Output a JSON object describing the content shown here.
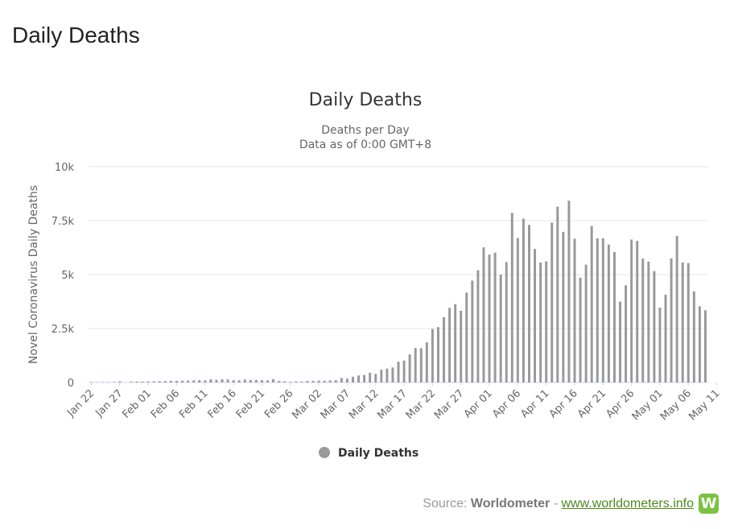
{
  "page": {
    "title": "Daily Deaths"
  },
  "chart_data": {
    "type": "bar",
    "title": "Daily Deaths",
    "subtitle_line1": "Deaths per Day",
    "subtitle_line2": "Data as of 0:00 GMT+8",
    "ylabel": "Novel Coronavirus Daily Deaths",
    "xlabel": "",
    "ylim": [
      0,
      10000
    ],
    "yticks": [
      0,
      2500,
      5000,
      7500,
      10000
    ],
    "ytick_labels": [
      "0",
      "2.5k",
      "5k",
      "7.5k",
      "10k"
    ],
    "xtick_labels": [
      "Jan 22",
      "Jan 27",
      "Feb 01",
      "Feb 06",
      "Feb 11",
      "Feb 16",
      "Feb 21",
      "Feb 26",
      "Mar 02",
      "Mar 07",
      "Mar 12",
      "Mar 17",
      "Mar 22",
      "Mar 27",
      "Apr 01",
      "Apr 06",
      "Apr 11",
      "Apr 16",
      "Apr 21",
      "Apr 26",
      "May 01",
      "May 06",
      "May 11"
    ],
    "grid": true,
    "legend_position": "bottom-center",
    "series": [
      {
        "name": "Daily Deaths",
        "color": "#999999",
        "values": [
          17,
          8,
          16,
          14,
          26,
          49,
          2,
          38,
          42,
          46,
          45,
          57,
          64,
          66,
          73,
          73,
          86,
          89,
          97,
          108,
          97,
          146,
          122,
          143,
          142,
          106,
          98,
          139,
          115,
          118,
          109,
          97,
          150,
          70,
          52,
          29,
          44,
          47,
          71,
          73,
          86,
          80,
          99,
          104,
          208,
          174,
          263,
          325,
          348,
          448,
          396,
          593,
          645,
          697,
          961,
          1016,
          1298,
          1597,
          1589,
          1858,
          2476,
          2566,
          3026,
          3459,
          3630,
          3325,
          4167,
          4722,
          5199,
          6262,
          5926,
          6015,
          4999,
          5580,
          7857,
          6692,
          7592,
          7302,
          6185,
          5560,
          5614,
          7409,
          8145,
          6980,
          8424,
          6661,
          4861,
          5460,
          7251,
          6677,
          6685,
          6389,
          6048,
          3745,
          4502,
          6621,
          6563,
          5744,
          5600,
          5162,
          3469,
          4064,
          5755,
          6795,
          5559,
          5530,
          4220,
          3529,
          3348
        ]
      }
    ],
    "legend_label": "Daily Deaths",
    "legend_color": "#999999"
  },
  "footer": {
    "source_prefix": "Source:",
    "source_brand": "Worldometer",
    "separator": "-",
    "source_link": "www.worldometers.info",
    "logo_letter": "W",
    "logo_color": "#7cc242"
  }
}
